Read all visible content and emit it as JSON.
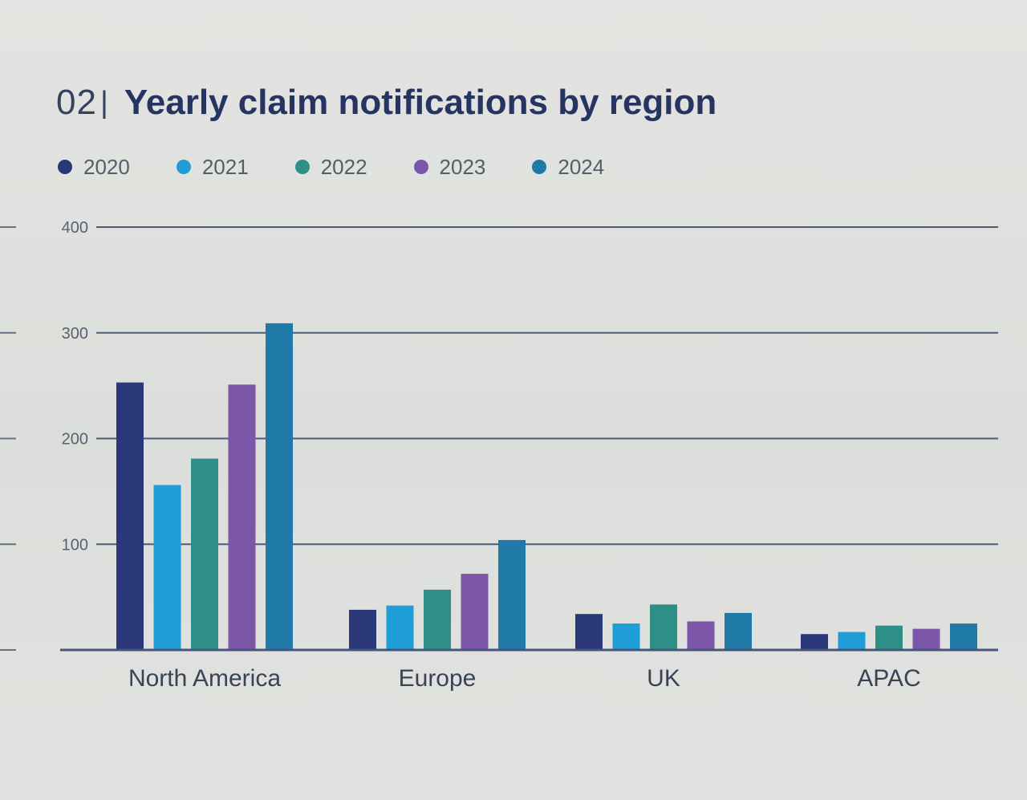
{
  "chart_number": "02",
  "title_separator": "|",
  "colors": {
    "2020": "#2a3778",
    "2021": "#1f9dd6",
    "2022": "#2e8f86",
    "2023": "#7c56a8",
    "2024": "#1f7aa8"
  },
  "chart_data": {
    "type": "bar",
    "title": "Yearly claim notifications by region",
    "xlabel": "",
    "ylabel": "",
    "ylim": [
      0,
      400
    ],
    "yticks": [
      "100",
      "200",
      "300",
      "400"
    ],
    "grid": true,
    "legend_position": "top-left",
    "categories": [
      "North America",
      "Europe",
      "UK",
      "APAC"
    ],
    "series": [
      {
        "name": "2020",
        "values": [
          253,
          38,
          34,
          15
        ]
      },
      {
        "name": "2021",
        "values": [
          156,
          42,
          25,
          17
        ]
      },
      {
        "name": "2022",
        "values": [
          181,
          57,
          43,
          23
        ]
      },
      {
        "name": "2023",
        "values": [
          251,
          72,
          27,
          20
        ]
      },
      {
        "name": "2024",
        "values": [
          309,
          104,
          35,
          25
        ]
      }
    ]
  }
}
